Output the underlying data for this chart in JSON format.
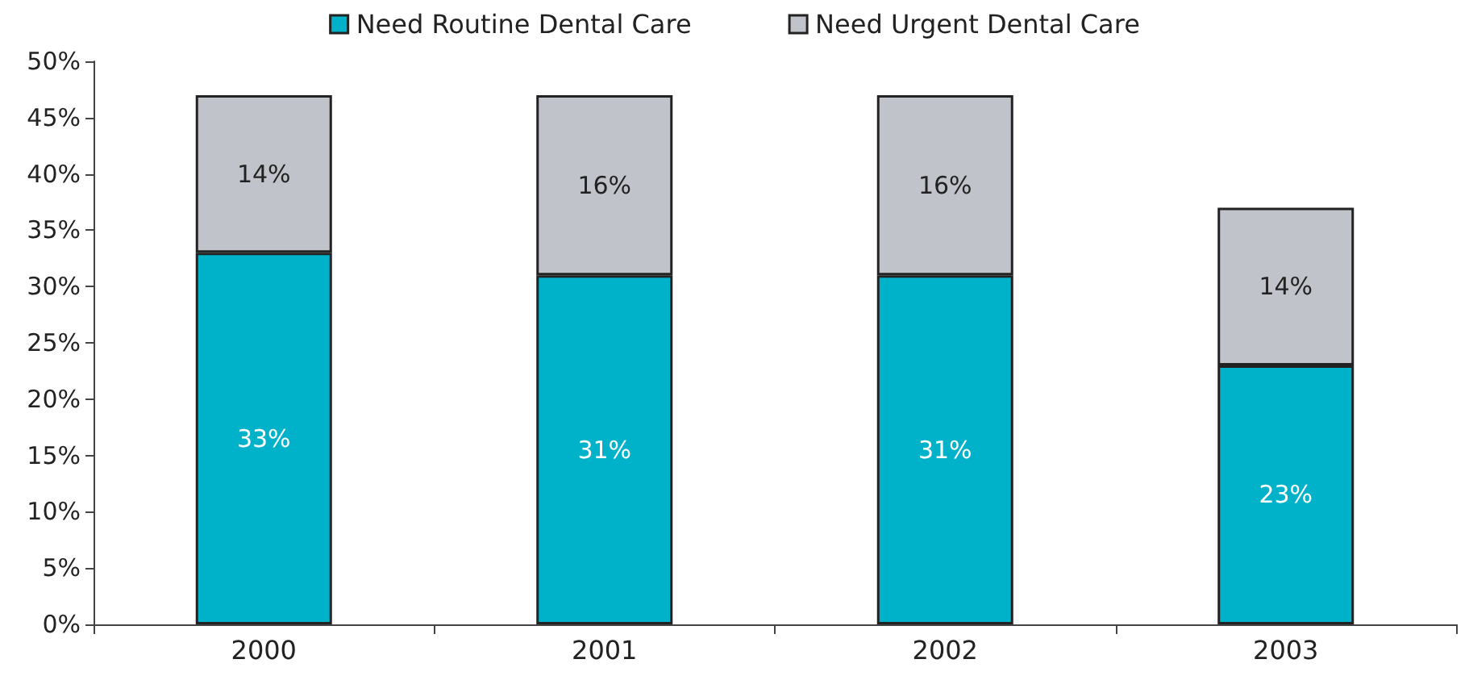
{
  "chart_data": {
    "type": "bar",
    "stacked": true,
    "categories": [
      "2000",
      "2001",
      "2002",
      "2003"
    ],
    "series": [
      {
        "name": "Need Routine Dental Care",
        "color": "#00b2c9",
        "values": [
          33,
          31,
          31,
          23
        ],
        "value_labels": [
          "33%",
          "31%",
          "31%",
          "23%"
        ]
      },
      {
        "name": "Need Urgent Dental Care",
        "color": "#c0c3c9",
        "values": [
          14,
          16,
          16,
          14
        ],
        "value_labels": [
          "14%",
          "16%",
          "16%",
          "14%"
        ]
      }
    ],
    "ylim": [
      0,
      50
    ],
    "yticks": [
      {
        "value": 0,
        "label": "0%"
      },
      {
        "value": 5,
        "label": "5%"
      },
      {
        "value": 10,
        "label": "10%"
      },
      {
        "value": 15,
        "label": "15%"
      },
      {
        "value": 20,
        "label": "20%"
      },
      {
        "value": 25,
        "label": "25%"
      },
      {
        "value": 30,
        "label": "30%"
      },
      {
        "value": 35,
        "label": "35%"
      },
      {
        "value": 40,
        "label": "40%"
      },
      {
        "value": 45,
        "label": "45%"
      },
      {
        "value": 50,
        "label": "50%"
      }
    ],
    "grid": false,
    "legend": "top"
  }
}
